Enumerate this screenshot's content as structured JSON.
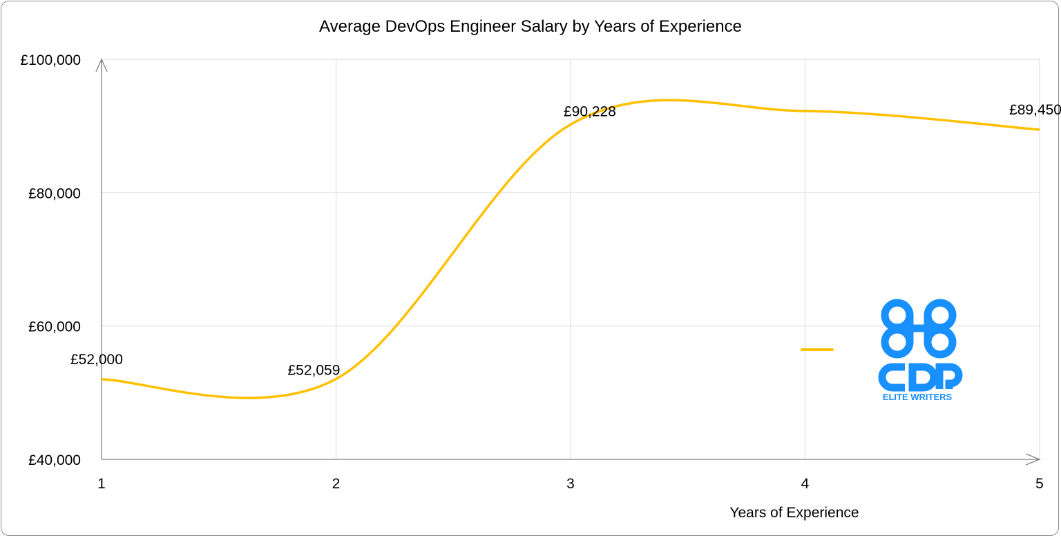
{
  "chart_data": {
    "type": "line",
    "smooth": true,
    "title": "Average DevOps Engineer Salary by Years of Experience",
    "xlabel": "Years of Experience",
    "ylabel": "",
    "x": [
      1,
      2,
      3,
      4,
      5
    ],
    "series": [
      {
        "values": [
          52000,
          52059,
          90228,
          92240,
          89450
        ],
        "data_labels": [
          "£52,000",
          "£52,059",
          "£90,228",
          "",
          "£89,450"
        ],
        "color": "#FFC000"
      }
    ],
    "xlim": [
      1,
      5
    ],
    "ylim": [
      40000,
      100000
    ],
    "x_ticks": [
      "1",
      "2",
      "3",
      "4",
      "5"
    ],
    "y_ticks": [
      {
        "value": 40000,
        "label": "£40,000"
      },
      {
        "value": 60000,
        "label": "£60,000"
      },
      {
        "value": 80000,
        "label": "£80,000"
      },
      {
        "value": 100000,
        "label": "£100,000"
      }
    ],
    "grid": true,
    "legend": "right",
    "legend_entries": [
      ""
    ]
  },
  "watermark": {
    "text": "CDR",
    "subtext": "ELITE WRITERS",
    "color": "#1890FF"
  }
}
